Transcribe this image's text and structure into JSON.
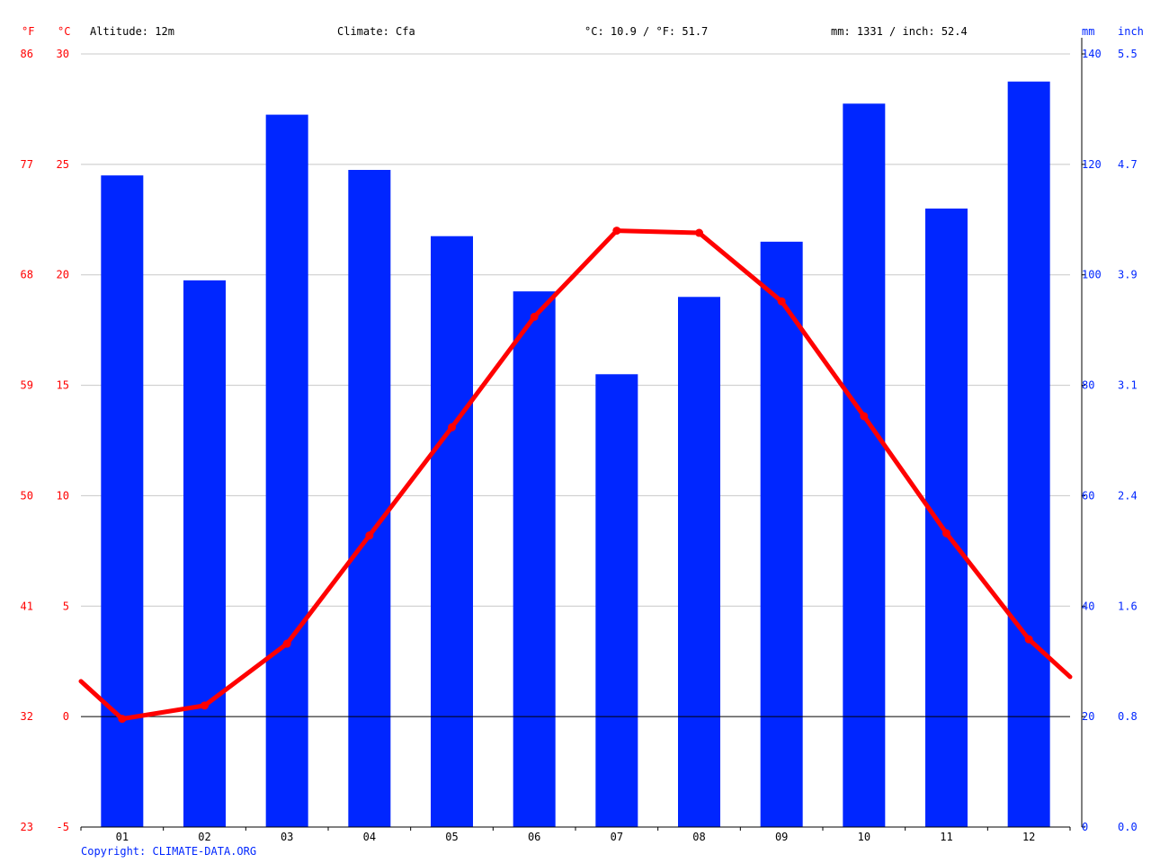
{
  "header": {
    "unit_f": "°F",
    "unit_c": "°C",
    "altitude": "Altitude: 12m",
    "climate": "Climate: Cfa",
    "temp_avg": "°C: 10.9 / °F: 51.7",
    "precip_total": "mm: 1331 / inch: 52.4",
    "unit_mm": "mm",
    "unit_inch": "inch"
  },
  "copyright": "Copyright: CLIMATE-DATA.ORG",
  "colors": {
    "temp": "#ff0000",
    "precip": "#0026ff",
    "grid": "#c8c8c8",
    "zero": "#000000"
  },
  "chart_data": {
    "type": "bar",
    "categories": [
      "01",
      "02",
      "03",
      "04",
      "05",
      "06",
      "07",
      "08",
      "09",
      "10",
      "11",
      "12"
    ],
    "series": [
      {
        "name": "",
        "kind": "bar",
        "axis": "right",
        "unit": "mm",
        "values": [
          118,
          99,
          129,
          119,
          107,
          97,
          82,
          96,
          106,
          131,
          112,
          135
        ]
      },
      {
        "name": "",
        "kind": "line",
        "axis": "left",
        "unit": "°C",
        "values": [
          -0.1,
          0.5,
          3.3,
          8.2,
          13.1,
          18.1,
          22.0,
          21.9,
          18.8,
          13.6,
          8.3,
          3.5
        ],
        "edge_start": 1.6,
        "edge_end": 1.8
      }
    ],
    "y_left_c": {
      "ticks": [
        30,
        25,
        20,
        15,
        10,
        5,
        0,
        -5
      ],
      "range": [
        -5,
        30
      ]
    },
    "y_left_f": {
      "ticks": [
        86,
        77,
        68,
        59,
        50,
        41,
        32,
        23
      ]
    },
    "y_right_mm": {
      "ticks": [
        140,
        120,
        100,
        80,
        60,
        40,
        20,
        0
      ],
      "range": [
        0,
        140
      ]
    },
    "y_right_inch": {
      "ticks": [
        "5.5",
        "4.7",
        "3.9",
        "3.1",
        "2.4",
        "1.6",
        "0.8",
        "0.0"
      ]
    },
    "grid": true
  }
}
